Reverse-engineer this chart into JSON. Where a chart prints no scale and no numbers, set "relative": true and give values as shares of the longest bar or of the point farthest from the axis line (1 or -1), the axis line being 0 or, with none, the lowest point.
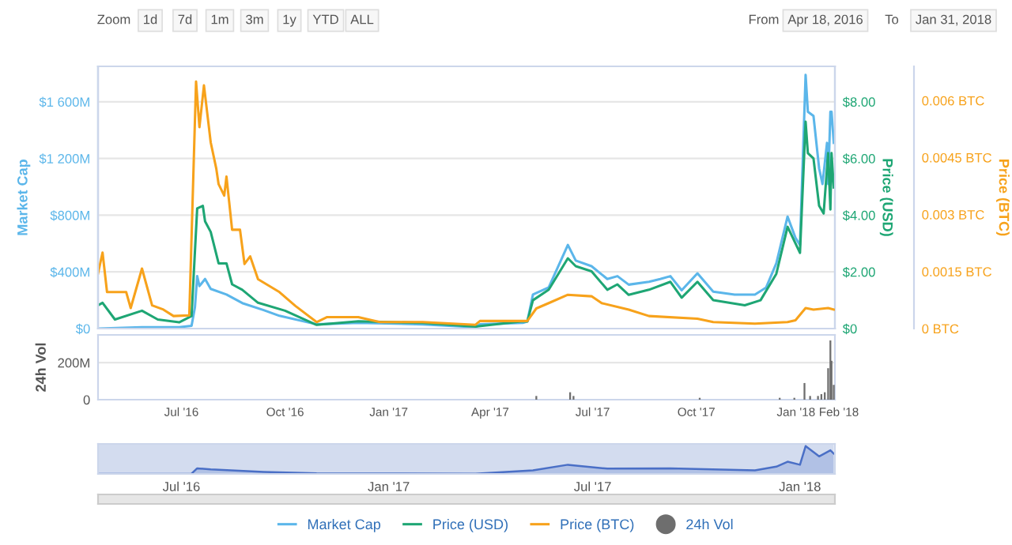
{
  "chart_data": [
    {
      "type": "line",
      "ylabel": "Market Cap",
      "y2label": "Price (USD)",
      "y3label": "Price (BTC)",
      "annotations": [
        "Zoom",
        "1d",
        "7d",
        "1m",
        "3m",
        "1y",
        "YTD",
        "ALL",
        "From",
        "Apr 18, 2016",
        "To",
        "Jan 31, 2018"
      ],
      "ylim": [
        0,
        1850
      ],
      "yticks": [
        {
          "value": 0,
          "label": "$0"
        },
        {
          "value": 400,
          "label": "$400M"
        },
        {
          "value": 800,
          "label": "$800M"
        },
        {
          "value": 1200,
          "label": "$1 200M"
        },
        {
          "value": 1600,
          "label": "$1 600M"
        }
      ],
      "y2lim": [
        0,
        9.25
      ],
      "y2ticks": [
        {
          "value": 0,
          "label": "$0"
        },
        {
          "value": 2,
          "label": "$2.00"
        },
        {
          "value": 4,
          "label": "$4.00"
        },
        {
          "value": 6,
          "label": "$6.00"
        },
        {
          "value": 8,
          "label": "$8.00"
        }
      ],
      "y3lim": [
        0,
        0.0069
      ],
      "y3ticks": [
        {
          "value": 0,
          "label": "0 BTC"
        },
        {
          "value": 0.0015,
          "label": "0.0015 BTC"
        },
        {
          "value": 0.003,
          "label": "0.003 BTC"
        },
        {
          "value": 0.0045,
          "label": "0.0045 BTC"
        },
        {
          "value": 0.006,
          "label": "0.006 BTC"
        }
      ],
      "grid": "y",
      "tick_labels": "y",
      "legend": "bottom",
      "xlim": [
        "2016-04-18",
        "2018-02-01"
      ],
      "series": [
        {
          "name": "Market Cap",
          "color": "#5bb6ea",
          "x": [
            "2016-04-18",
            "2016-05-27",
            "2016-06-10",
            "2016-06-29",
            "2016-07-10",
            "2016-07-13",
            "2016-07-15",
            "2016-07-17",
            "2016-07-22",
            "2016-07-27",
            "2016-08-10",
            "2016-08-24",
            "2016-09-12",
            "2016-09-26",
            "2016-10-29",
            "2016-12-05",
            "2017-01-31",
            "2017-03-19",
            "2017-03-23",
            "2017-04-30",
            "2017-05-04",
            "2017-05-09",
            "2017-05-23",
            "2017-06-09",
            "2017-06-16",
            "2017-06-30",
            "2017-07-14",
            "2017-07-23",
            "2017-08-02",
            "2017-08-20",
            "2017-08-30",
            "2017-09-08",
            "2017-09-18",
            "2017-10-02",
            "2017-10-16",
            "2017-11-04",
            "2017-11-22",
            "2017-12-02",
            "2017-12-11",
            "2017-12-21",
            "2017-12-28",
            "2018-01-01",
            "2018-01-06",
            "2018-01-08",
            "2018-01-13",
            "2018-01-18",
            "2018-01-21",
            "2018-01-25",
            "2018-01-26",
            "2018-01-28",
            "2018-01-29",
            "2018-01-31"
          ],
          "values": [
            0,
            10,
            10,
            10,
            20,
            150,
            370,
            300,
            350,
            280,
            240,
            180,
            130,
            90,
            30,
            40,
            30,
            10,
            30,
            40,
            50,
            240,
            290,
            590,
            480,
            440,
            350,
            370,
            310,
            330,
            350,
            370,
            270,
            390,
            260,
            240,
            240,
            290,
            460,
            790,
            640,
            590,
            1790,
            1530,
            1500,
            1130,
            1020,
            1310,
            1020,
            1530,
            1530,
            1310
          ]
        },
        {
          "name": "Price (USD)",
          "color": "#1ea674",
          "axis": "y2",
          "x": [
            "2016-04-18",
            "2016-04-22",
            "2016-05-03",
            "2016-05-27",
            "2016-06-10",
            "2016-06-29",
            "2016-07-10",
            "2016-07-15",
            "2016-07-20",
            "2016-07-22",
            "2016-07-27",
            "2016-08-03",
            "2016-08-10",
            "2016-08-15",
            "2016-08-24",
            "2016-09-07",
            "2016-10-01",
            "2016-10-29",
            "2016-12-05",
            "2017-01-31",
            "2017-03-19",
            "2017-04-30",
            "2017-05-04",
            "2017-05-09",
            "2017-05-23",
            "2017-06-09",
            "2017-06-16",
            "2017-06-30",
            "2017-07-14",
            "2017-07-23",
            "2017-08-02",
            "2017-08-20",
            "2017-09-08",
            "2017-09-18",
            "2017-10-02",
            "2017-10-16",
            "2017-11-13",
            "2017-11-27",
            "2017-12-11",
            "2017-12-21",
            "2018-01-01",
            "2018-01-06",
            "2018-01-08",
            "2018-01-13",
            "2018-01-18",
            "2018-01-22",
            "2018-01-26",
            "2018-01-28",
            "2018-01-29",
            "2018-01-31"
          ],
          "values": [
            0.82,
            0.91,
            0.32,
            0.63,
            0.32,
            0.22,
            0.44,
            4.24,
            4.33,
            3.78,
            3.41,
            2.3,
            2.3,
            1.56,
            1.37,
            0.91,
            0.63,
            0.13,
            0.26,
            0.2,
            0.07,
            0.26,
            0.25,
            1.0,
            1.37,
            2.48,
            2.2,
            2.02,
            1.37,
            1.56,
            1.19,
            1.37,
            1.65,
            1.09,
            1.65,
            1.0,
            0.82,
            1.0,
            1.93,
            3.59,
            2.67,
            7.3,
            6.19,
            6.0,
            4.33,
            4.06,
            6.19,
            4.2,
            6.19,
            4.98
          ]
        },
        {
          "name": "Price (BTC)",
          "color": "#f7a21b",
          "axis": "y3",
          "x": [
            "2016-04-18",
            "2016-04-22",
            "2016-04-26",
            "2016-05-13",
            "2016-05-17",
            "2016-05-27",
            "2016-06-05",
            "2016-06-15",
            "2016-06-24",
            "2016-07-08",
            "2016-07-14",
            "2016-07-17",
            "2016-07-21",
            "2016-07-25",
            "2016-07-27",
            "2016-08-01",
            "2016-08-03",
            "2016-08-08",
            "2016-08-10",
            "2016-08-15",
            "2016-08-22",
            "2016-08-26",
            "2016-08-31",
            "2016-09-07",
            "2016-09-26",
            "2016-10-10",
            "2016-10-29",
            "2016-11-07",
            "2016-12-05",
            "2016-12-24",
            "2017-01-31",
            "2017-03-19",
            "2017-03-23",
            "2017-04-30",
            "2017-05-04",
            "2017-05-12",
            "2017-05-23",
            "2017-06-09",
            "2017-06-30",
            "2017-07-09",
            "2017-08-02",
            "2017-08-20",
            "2017-10-02",
            "2017-10-16",
            "2017-11-22",
            "2017-12-21",
            "2017-12-28",
            "2018-01-06",
            "2018-01-13",
            "2018-01-26",
            "2018-01-31"
          ],
          "values": [
            0.00145,
            0.002,
            0.00096,
            0.00096,
            0.00054,
            0.00158,
            0.00061,
            0.0005,
            0.00033,
            0.00035,
            0.0065,
            0.0053,
            0.0064,
            0.0054,
            0.0049,
            0.0042,
            0.0038,
            0.0035,
            0.004,
            0.0026,
            0.0026,
            0.0017,
            0.0019,
            0.0013,
            0.00096,
            0.0006,
            0.00017,
            0.0003,
            0.0003,
            0.00017,
            0.00017,
            0.0001,
            0.0002,
            0.0002,
            0.0002,
            0.00053,
            0.00067,
            0.00089,
            0.00085,
            0.00067,
            0.0005,
            0.00033,
            0.00026,
            0.00017,
            0.00013,
            0.00017,
            0.00022,
            0.00054,
            0.0005,
            0.00054,
            0.0005
          ]
        }
      ]
    },
    {
      "type": "bar",
      "ylabel": "24h Vol",
      "xlim": [
        "2016-04-18",
        "2018-02-01"
      ],
      "xticks": [
        {
          "value": "2016-07-01",
          "label": "Jul '16"
        },
        {
          "value": "2016-10-01",
          "label": "Oct '16"
        },
        {
          "value": "2017-01-01",
          "label": "Jan '17"
        },
        {
          "value": "2017-04-01",
          "label": "Apr '17"
        },
        {
          "value": "2017-07-01",
          "label": "Jul '17"
        },
        {
          "value": "2017-10-01",
          "label": "Oct '17"
        },
        {
          "value": "2018-01-01",
          "label": "Jan '18"
        },
        {
          "value": "2018-02-01",
          "label": "Feb '18"
        }
      ],
      "ylim": [
        0,
        350
      ],
      "yticks": [
        0,
        {
          "value": 200,
          "label": "200M"
        }
      ],
      "grid": "y",
      "legend": "bottom",
      "series": [
        {
          "name": "24h Vol",
          "color": "#6e6e6e",
          "x": [
            "2017-05-12",
            "2017-06-11",
            "2017-06-14",
            "2017-10-04",
            "2017-12-14",
            "2017-12-27",
            "2018-01-05",
            "2018-01-10",
            "2018-01-17",
            "2018-01-20",
            "2018-01-23",
            "2018-01-26",
            "2018-01-28",
            "2018-01-29",
            "2018-01-31"
          ],
          "values": [
            20,
            40,
            20,
            10,
            10,
            10,
            90,
            20,
            20,
            30,
            40,
            170,
            320,
            210,
            80
          ]
        }
      ]
    },
    {
      "type": "area",
      "relative": true,
      "tick_labels": "x",
      "xlim": [
        "2016-04-18",
        "2018-02-01"
      ],
      "xticks": [
        {
          "value": "2016-07-01",
          "label": "Jul '16"
        },
        {
          "value": "2017-01-01",
          "label": "Jan '17"
        },
        {
          "value": "2017-07-01",
          "label": "Jul '17"
        },
        {
          "value": "2018-01-01",
          "label": "Jan '18"
        }
      ],
      "bands": [
        {
          "axis": "x",
          "from": "2016-04-18",
          "to": "2018-01-31",
          "color": "#d3dcef"
        }
      ],
      "series": [
        {
          "color": "#4a6fc6",
          "x": [
            "2016-04-18",
            "2016-07-10",
            "2016-07-15",
            "2016-07-27",
            "2016-09-12",
            "2016-10-29",
            "2017-03-19",
            "2017-05-09",
            "2017-06-09",
            "2017-07-14",
            "2017-09-08",
            "2017-11-22",
            "2017-12-11",
            "2017-12-21",
            "2018-01-01",
            "2018-01-06",
            "2018-01-18",
            "2018-01-28",
            "2018-01-31"
          ],
          "values": [
            0.002,
            0.01,
            0.2,
            0.16,
            0.07,
            0.02,
            0.005,
            0.13,
            0.33,
            0.19,
            0.2,
            0.13,
            0.26,
            0.44,
            0.33,
            1,
            0.63,
            0.85,
            0.73
          ]
        }
      ]
    }
  ]
}
